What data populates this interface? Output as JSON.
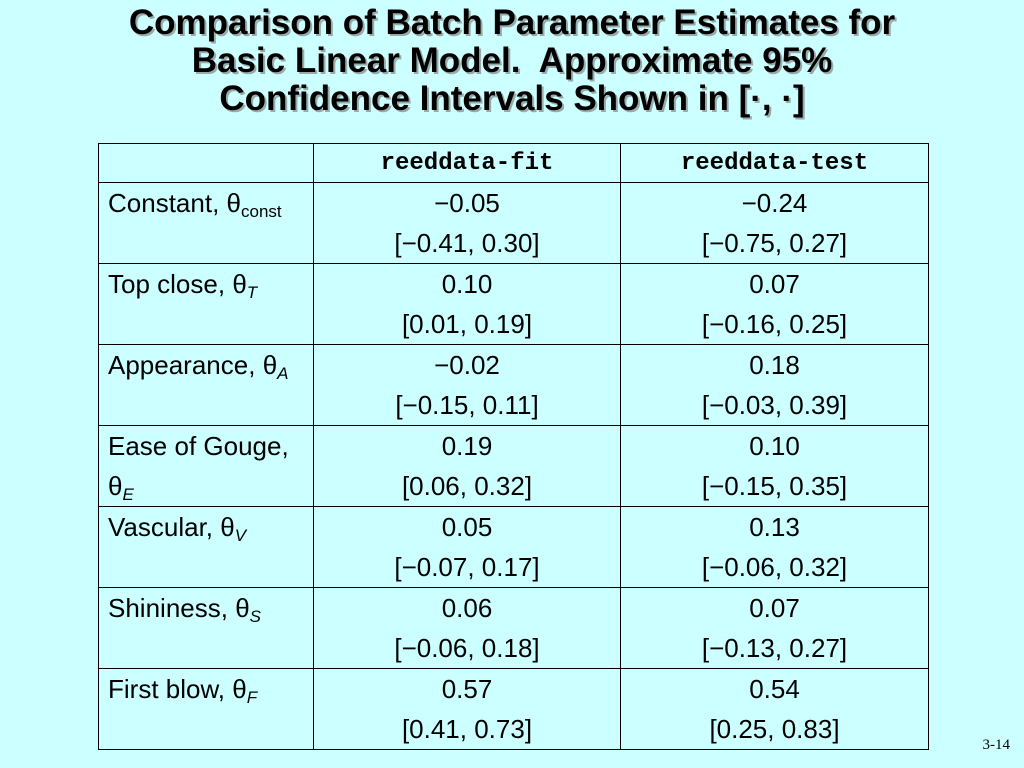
{
  "title": {
    "lines": [
      "Comparison of Batch Parameter Estimates for",
      "Basic Linear Model.  Approximate 95%",
      "Confidence Intervals Shown in [·, ·]"
    ]
  },
  "table": {
    "header": [
      "reeddata-fit",
      "reeddata-test"
    ],
    "rows": [
      {
        "label": "Constant,",
        "symbol": "θ",
        "subscript": "const",
        "cells": [
          {
            "estimate": "−0.05",
            "interval": "[−0.41, 0.30]"
          },
          {
            "estimate": "−0.24",
            "interval": "[−0.75, 0.27]"
          }
        ]
      },
      {
        "label": "Top close,",
        "symbol": "θ",
        "subscript": "T",
        "cells": [
          {
            "estimate": "0.10",
            "interval": "[0.01, 0.19]"
          },
          {
            "estimate": "0.07",
            "interval": "[−0.16, 0.25]"
          }
        ]
      },
      {
        "label": "Appearance,",
        "symbol": "θ",
        "subscript": "A",
        "cells": [
          {
            "estimate": "−0.02",
            "interval": "[−0.15, 0.11]"
          },
          {
            "estimate": "0.18",
            "interval": "[−0.03, 0.39]"
          }
        ]
      },
      {
        "label": "Ease of Gouge,",
        "symbol": "θ",
        "subscript": "E",
        "cells": [
          {
            "estimate": "0.19",
            "interval": "[0.06, 0.32]"
          },
          {
            "estimate": "0.10",
            "interval": "[−0.15, 0.35]"
          }
        ]
      },
      {
        "label": "Vascular,",
        "symbol": "θ",
        "subscript": "V",
        "cells": [
          {
            "estimate": "0.05",
            "interval": "[−0.07, 0.17]"
          },
          {
            "estimate": "0.13",
            "interval": "[−0.06, 0.32]"
          }
        ]
      },
      {
        "label": "Shininess,",
        "symbol": "θ",
        "subscript": "S",
        "cells": [
          {
            "estimate": "0.06",
            "interval": "[−0.06, 0.18]"
          },
          {
            "estimate": "0.07",
            "interval": "[−0.13, 0.27]"
          }
        ]
      },
      {
        "label": "First blow,",
        "symbol": "θ",
        "subscript": "F",
        "cells": [
          {
            "estimate": "0.57",
            "interval": "[0.41, 0.73]"
          },
          {
            "estimate": "0.54",
            "interval": "[0.25, 0.83]"
          }
        ]
      }
    ]
  },
  "footer": {
    "page": "3-14"
  }
}
